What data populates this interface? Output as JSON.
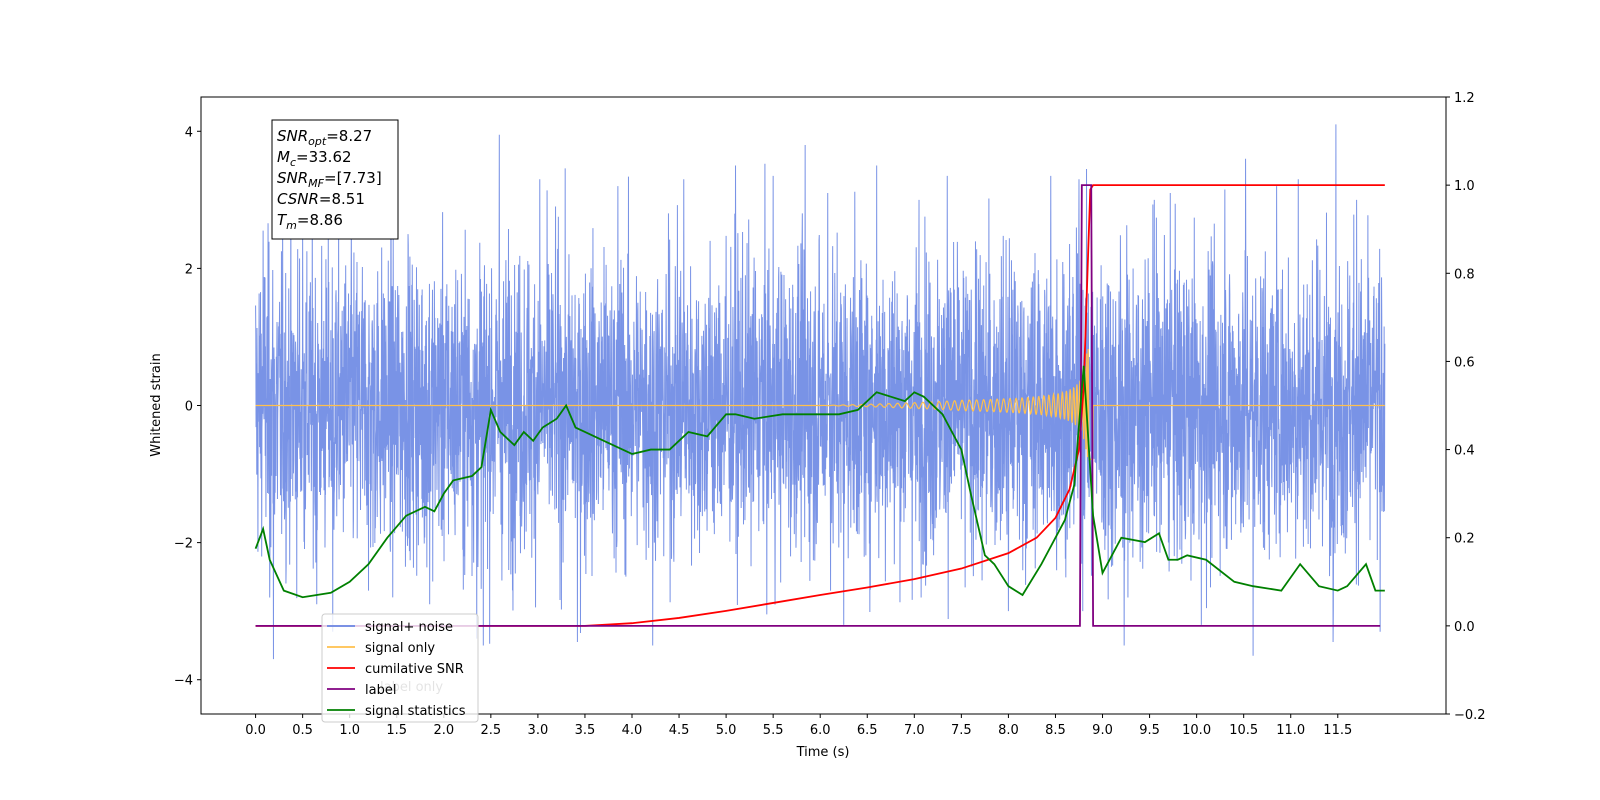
{
  "chart_data": {
    "type": "line",
    "xlabel": "Time (s)",
    "ylabel": "Whitened strain",
    "xlim": [
      -0.58,
      12.65
    ],
    "ylim": [
      -4.5,
      4.5
    ],
    "y2lim": [
      -0.2,
      1.2
    ],
    "x_ticks": [
      0.0,
      0.5,
      1.0,
      1.5,
      2.0,
      2.5,
      3.0,
      3.5,
      4.0,
      4.5,
      5.0,
      5.5,
      6.0,
      6.5,
      7.0,
      7.5,
      8.0,
      8.5,
      9.0,
      9.5,
      10.0,
      10.5,
      11.0,
      11.5
    ],
    "x_tick_labels": [
      "0.0",
      "0.5",
      "1.0",
      "1.5",
      "2.0",
      "2.5",
      "3.0",
      "3.5",
      "4.0",
      "4.5",
      "5.0",
      "5.5",
      "6.0",
      "6.5",
      "7.0",
      "7.5",
      "8.0",
      "8.5",
      "9.0",
      "9.5",
      "10.0",
      "10.5",
      "11.0",
      "11.5"
    ],
    "y_ticks": [
      -4,
      -2,
      0,
      2,
      4
    ],
    "y_tick_labels": [
      "−4",
      "−2",
      "0",
      "2",
      "4"
    ],
    "y2_ticks": [
      -0.2,
      0.0,
      0.2,
      0.4,
      0.6,
      0.8,
      1.0,
      1.2
    ],
    "y2_tick_labels": [
      "−0.2",
      "0.0",
      "0.2",
      "0.4",
      "0.6",
      "0.8",
      "1.0",
      "1.2"
    ],
    "grid": false,
    "legend_position": "lower-left",
    "annotation": {
      "lines": [
        {
          "base": "SNR",
          "sub": "opt",
          "value": "=8.27"
        },
        {
          "base": "M",
          "sub": "c",
          "value": "=33.62"
        },
        {
          "base": "SNR",
          "sub": "MF",
          "value": "=[7.73]"
        },
        {
          "base": "CSNR",
          "sub": "",
          "value": "=8.51"
        },
        {
          "base": "T",
          "sub": "m",
          "value": "=8.86"
        }
      ]
    },
    "legend": [
      {
        "label": "signal+ noise",
        "color": "#6a87e3"
      },
      {
        "label": "signal only",
        "color": "#ffc04d"
      },
      {
        "label": "cumilative SNR",
        "color": "#ff0000"
      },
      {
        "label": "label",
        "color": "#800080"
      },
      {
        "label": "signal statistics",
        "color": "#008000"
      }
    ],
    "hidden_legend_text": "label only",
    "series": [
      {
        "name": "signal+ noise",
        "axis": "left",
        "color": "#6a87e3",
        "x_range": [
          0.0,
          12.0
        ],
        "typical_amplitude": 1.1,
        "spikes": [
          [
            0.08,
            2.55
          ],
          [
            0.15,
            -2.8
          ],
          [
            0.19,
            -3.7
          ],
          [
            0.5,
            2.5
          ],
          [
            0.65,
            -2.9
          ],
          [
            0.82,
            -3.3
          ],
          [
            1.2,
            -2.7
          ],
          [
            1.62,
            2.5
          ],
          [
            1.85,
            -2.9
          ],
          [
            2.35,
            -3.4
          ],
          [
            2.42,
            -3.5
          ],
          [
            2.59,
            3.95
          ],
          [
            3.02,
            3.3
          ],
          [
            3.42,
            -3.45
          ],
          [
            3.85,
            3.2
          ],
          [
            4.22,
            -3.5
          ],
          [
            4.55,
            3.3
          ],
          [
            5.1,
            3.5
          ],
          [
            5.5,
            3.35
          ],
          [
            5.84,
            3.8
          ],
          [
            6.08,
            3.1
          ],
          [
            6.25,
            -3.2
          ],
          [
            6.6,
            3.5
          ],
          [
            7.05,
            3.0
          ],
          [
            7.35,
            3.35
          ],
          [
            7.72,
            -2.55
          ],
          [
            8.0,
            -3.0
          ],
          [
            8.45,
            3.35
          ],
          [
            8.75,
            3.3
          ],
          [
            8.79,
            -3.0
          ],
          [
            8.83,
            3.45
          ],
          [
            9.23,
            -3.5
          ],
          [
            9.55,
            3.0
          ],
          [
            9.72,
            3.1
          ],
          [
            10.05,
            -3.2
          ],
          [
            10.3,
            3.15
          ],
          [
            10.52,
            3.6
          ],
          [
            10.6,
            -3.65
          ],
          [
            10.85,
            3.2
          ],
          [
            11.08,
            3.3
          ],
          [
            11.45,
            -3.45
          ],
          [
            11.48,
            4.1
          ],
          [
            11.7,
            3.0
          ],
          [
            11.95,
            -3.3
          ]
        ]
      },
      {
        "name": "signal only",
        "axis": "left",
        "color": "#ffc04d",
        "chirp": {
          "t_merge": 8.86,
          "frequency_at_8s": 15,
          "amplitude_at_8s": 0.1,
          "peak_amplitude": 0.85,
          "constant_before": 6.0
        }
      },
      {
        "name": "cumilative SNR",
        "axis": "right",
        "color": "#ff0000",
        "x": [
          0.0,
          3.5,
          4.0,
          4.5,
          5.0,
          5.5,
          6.0,
          6.5,
          7.0,
          7.5,
          8.0,
          8.3,
          8.5,
          8.65,
          8.75,
          8.8,
          8.84,
          8.87,
          8.9,
          12.0
        ],
        "y": [
          0.0,
          0.0,
          0.006,
          0.018,
          0.034,
          0.052,
          0.07,
          0.087,
          0.106,
          0.13,
          0.165,
          0.2,
          0.245,
          0.31,
          0.4,
          0.54,
          0.8,
          0.99,
          1.0,
          1.0
        ]
      },
      {
        "name": "label",
        "axis": "right",
        "color": "#800080",
        "x": [
          0.0,
          8.76,
          8.78,
          8.88,
          8.9,
          11.95
        ],
        "y": [
          0.0,
          0.0,
          1.0,
          1.0,
          0.0,
          0.0
        ]
      },
      {
        "name": "signal statistics",
        "axis": "right",
        "color": "#008000",
        "x": [
          0.0,
          0.08,
          0.15,
          0.3,
          0.5,
          0.65,
          0.8,
          1.0,
          1.2,
          1.4,
          1.6,
          1.8,
          1.9,
          2.0,
          2.1,
          2.3,
          2.4,
          2.5,
          2.6,
          2.75,
          2.85,
          2.95,
          3.05,
          3.2,
          3.3,
          3.4,
          3.5,
          3.7,
          4.0,
          4.2,
          4.4,
          4.6,
          4.8,
          5.0,
          5.1,
          5.3,
          5.6,
          5.8,
          6.0,
          6.2,
          6.4,
          6.6,
          6.75,
          6.9,
          7.0,
          7.1,
          7.3,
          7.5,
          7.6,
          7.75,
          7.85,
          8.0,
          8.15,
          8.35,
          8.6,
          8.7,
          8.8,
          8.9,
          9.0,
          9.2,
          9.45,
          9.6,
          9.7,
          9.8,
          9.9,
          10.1,
          10.4,
          10.6,
          10.9,
          11.1,
          11.3,
          11.5,
          11.6,
          11.8,
          11.9,
          12.0
        ],
        "y": [
          0.175,
          0.22,
          0.15,
          0.08,
          0.065,
          0.07,
          0.075,
          0.1,
          0.14,
          0.2,
          0.25,
          0.27,
          0.26,
          0.3,
          0.33,
          0.34,
          0.36,
          0.49,
          0.44,
          0.41,
          0.44,
          0.42,
          0.45,
          0.47,
          0.5,
          0.45,
          0.44,
          0.42,
          0.39,
          0.4,
          0.4,
          0.44,
          0.43,
          0.48,
          0.48,
          0.47,
          0.48,
          0.48,
          0.48,
          0.48,
          0.49,
          0.53,
          0.52,
          0.51,
          0.53,
          0.52,
          0.48,
          0.4,
          0.3,
          0.16,
          0.14,
          0.09,
          0.07,
          0.14,
          0.24,
          0.32,
          0.59,
          0.25,
          0.12,
          0.2,
          0.19,
          0.21,
          0.15,
          0.15,
          0.16,
          0.15,
          0.1,
          0.09,
          0.08,
          0.14,
          0.09,
          0.08,
          0.09,
          0.14,
          0.08,
          0.08
        ]
      }
    ]
  }
}
